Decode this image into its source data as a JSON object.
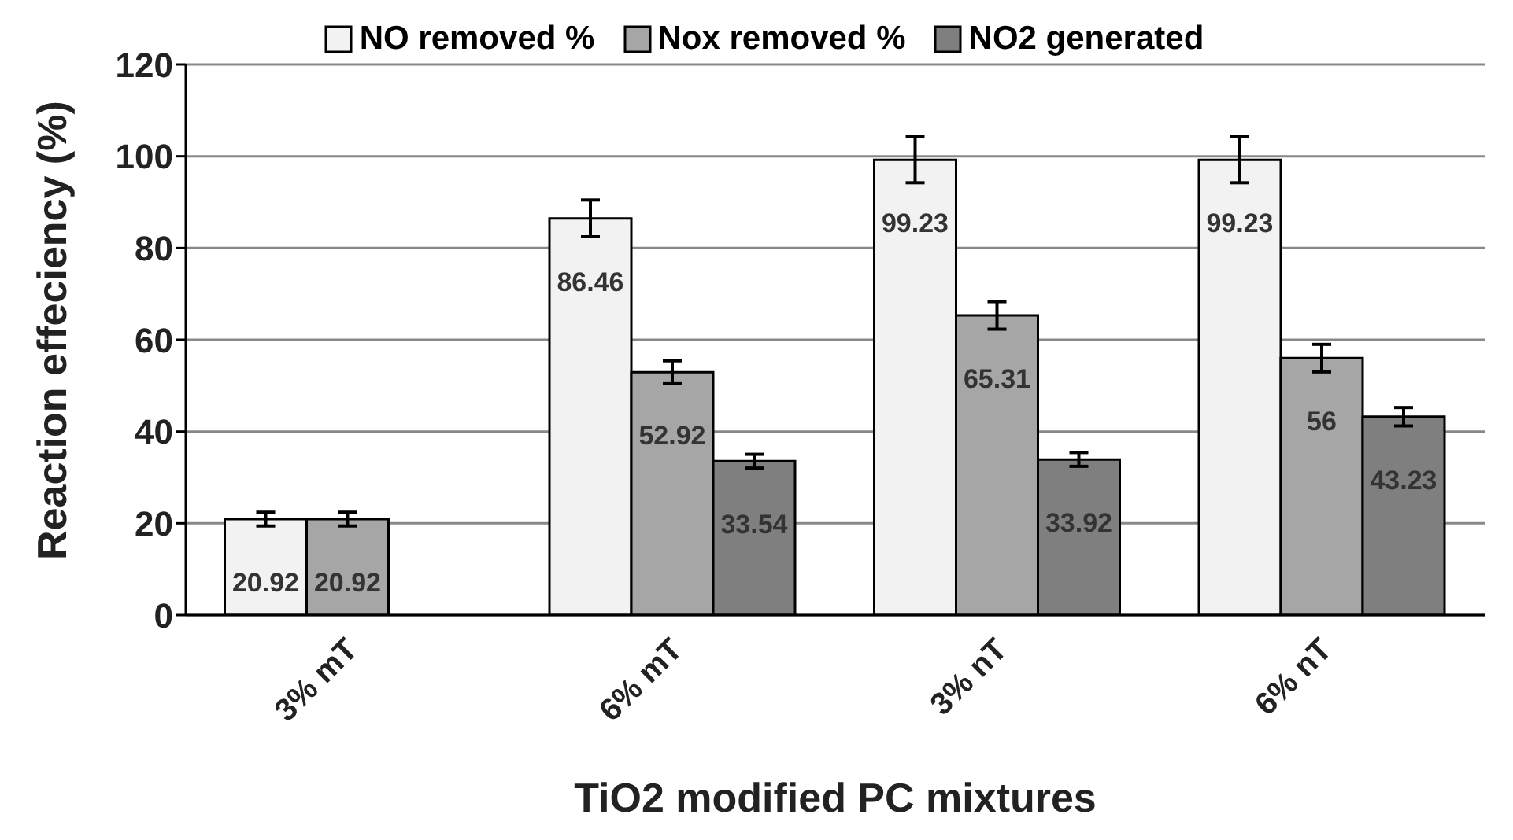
{
  "chart_data": {
    "type": "bar",
    "xlabel": "TiO2 modified PC mixtures",
    "ylabel": "Reaction effeciency (%)",
    "categories": [
      "3% mT",
      "6% mT",
      "3% nT",
      "6% nT"
    ],
    "series": [
      {
        "name": "NO removed %",
        "color": "#f2f2f2",
        "values": [
          20.92,
          86.46,
          99.23,
          99.23
        ],
        "errors": [
          1.5,
          4,
          5,
          5
        ]
      },
      {
        "name": "Nox removed %",
        "color": "#a6a6a6",
        "values": [
          20.92,
          52.92,
          65.31,
          56
        ],
        "errors": [
          1.5,
          2.5,
          3,
          3
        ]
      },
      {
        "name": "NO2 generated",
        "color": "#7f7f7f",
        "values": [
          null,
          33.54,
          33.92,
          43.23
        ],
        "errors": [
          null,
          1.5,
          1.5,
          2
        ]
      }
    ],
    "ylim": [
      0,
      120
    ],
    "yticks": [
      0,
      20,
      40,
      60,
      80,
      100,
      120
    ],
    "grid": "y",
    "legend": "top",
    "data_labels": true
  }
}
